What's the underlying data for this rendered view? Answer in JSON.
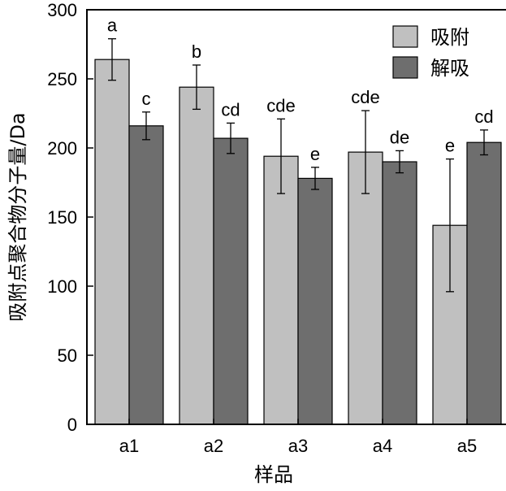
{
  "chart_data": {
    "type": "bar",
    "categories": [
      "a1",
      "a2",
      "a3",
      "a4",
      "a5"
    ],
    "xlabel": "样品",
    "ylabel": "吸附点聚合物分子量/Da",
    "ylim": [
      0,
      300
    ],
    "yticks": [
      0,
      50,
      100,
      150,
      200,
      250,
      300
    ],
    "grid": false,
    "legend_position": "top-right",
    "series": [
      {
        "name": "吸附",
        "color": "#c0c0c0",
        "values": [
          264,
          244,
          194,
          197,
          144
        ],
        "errors": [
          15,
          16,
          27,
          30,
          48
        ],
        "labels": [
          "a",
          "b",
          "cde",
          "cde",
          "e"
        ]
      },
      {
        "name": "解吸",
        "color": "#6e6e6e",
        "values": [
          216,
          207,
          178,
          190,
          204
        ],
        "errors": [
          10,
          11,
          8,
          8,
          9
        ],
        "labels": [
          "c",
          "cd",
          "e",
          "de",
          "cd"
        ]
      }
    ]
  }
}
